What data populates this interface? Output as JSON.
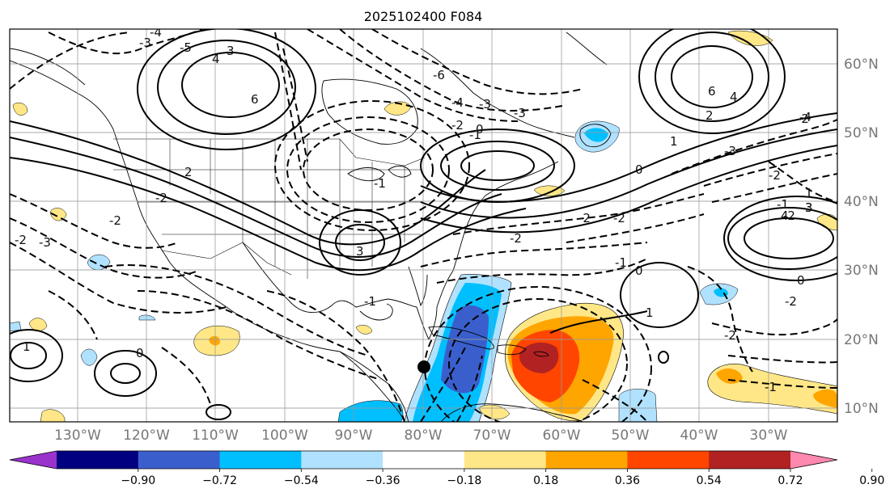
{
  "title": "2025102400 F084",
  "lon_labels": [
    "130°W",
    "120°W",
    "110°W",
    "100°W",
    "90°W",
    "80°W",
    "70°W",
    "60°W",
    "50°W",
    "40°W",
    "30°W"
  ],
  "lat_labels": [
    "60°N",
    "50°N",
    "40°N",
    "30°N",
    "20°N",
    "10°N"
  ],
  "colorbar": {
    "ticks": [
      "−0.90",
      "−0.72",
      "−0.54",
      "−0.36",
      "−0.18",
      "0.18",
      "0.36",
      "0.54",
      "0.72",
      "0.90"
    ],
    "colors": [
      "#9933cc",
      "#000080",
      "#3a5fcd",
      "#00bfff",
      "#b0e2ff",
      "#ffffff",
      "#ffe787",
      "#ffa500",
      "#ff4500",
      "#b22222",
      "#ff88b0"
    ]
  },
  "contour_labels": [
    "-3",
    "-4",
    "-5",
    "4",
    "3",
    "6",
    "-6",
    "-4",
    "-3",
    "-2",
    "-1",
    "-3",
    "6",
    "4",
    "2",
    "1",
    "-2",
    "-4",
    "-3",
    "-2",
    "1",
    "-1",
    "-2",
    "3",
    "-2",
    "2",
    "-2",
    "-1",
    "0",
    "-2",
    "-2",
    "-2",
    "3",
    "-1",
    "0",
    "1",
    "4",
    "3",
    "0",
    "0",
    "-2",
    "-2",
    "-1",
    "-1",
    "1",
    "0",
    "-3",
    "-2"
  ],
  "point_marker": "black-dot"
}
